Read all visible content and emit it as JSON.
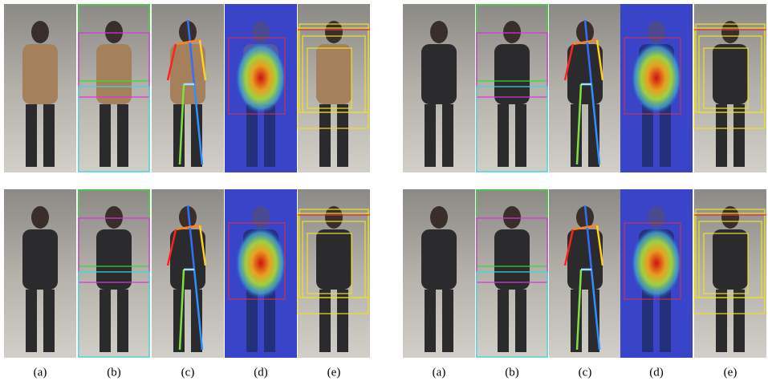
{
  "captions": {
    "left": [
      "(a)",
      "(b)",
      "(c)",
      "(d)",
      "(e)"
    ],
    "right": [
      "(a)",
      "(b)",
      "(c)",
      "(d)",
      "(e)"
    ]
  }
}
